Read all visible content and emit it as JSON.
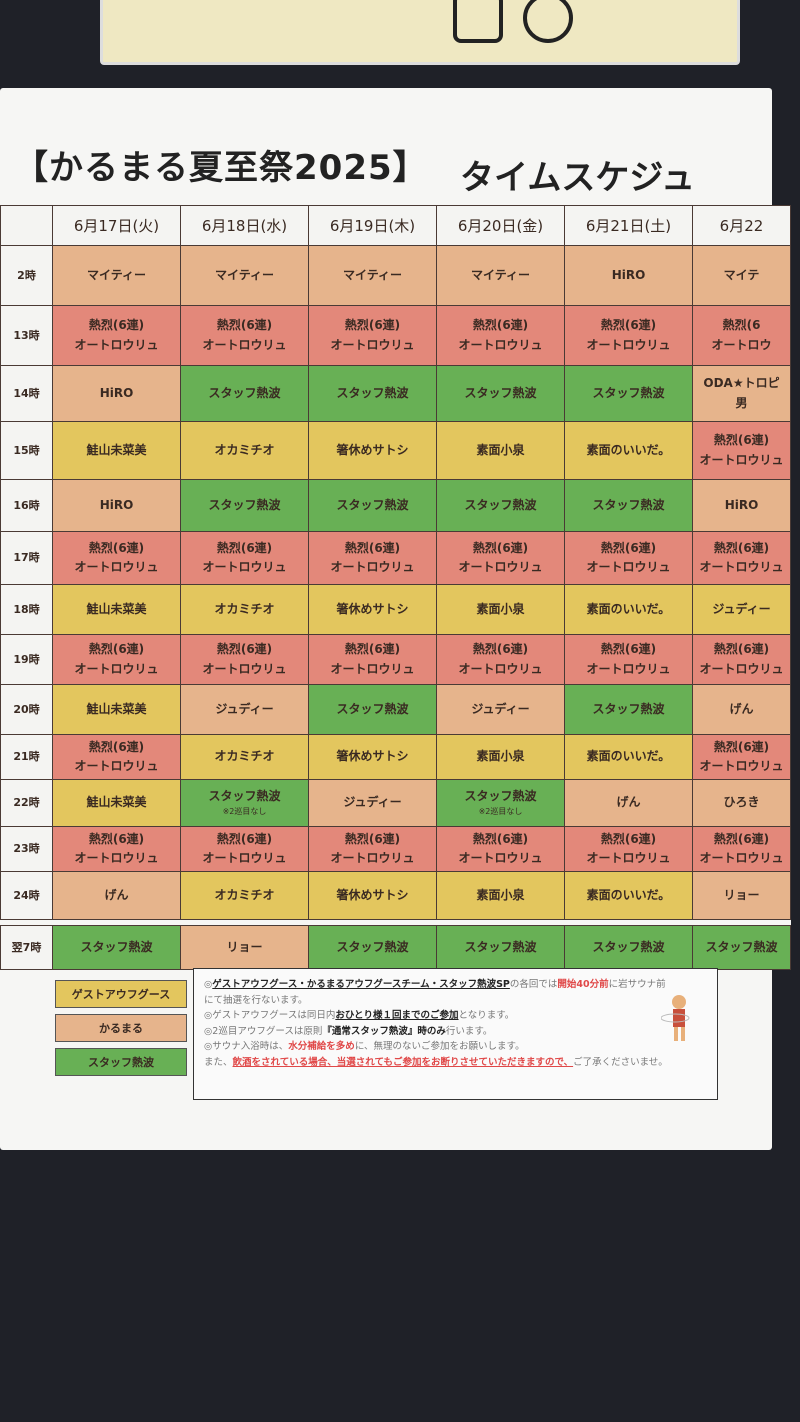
{
  "title": "【かるまる夏至祭2025】",
  "subtitle": "タイムスケジュ",
  "days": [
    "6月17日(火)",
    "6月18日(水)",
    "6月19日(木)",
    "6月20日(金)",
    "6月21日(土)",
    "6月22"
  ],
  "colors": {
    "G": "#e3c65e",
    "K": "#e6b48c",
    "R": "#e3887a",
    "S": "#68b055"
  },
  "rows": [
    {
      "time": "2時",
      "cells": [
        [
          "K",
          "マイティー"
        ],
        [
          "K",
          "マイティー"
        ],
        [
          "K",
          "マイティー"
        ],
        [
          "K",
          "マイティー"
        ],
        [
          "K",
          "HiRO"
        ],
        [
          "K",
          "マイテ"
        ]
      ]
    },
    {
      "time": "13時",
      "cells": [
        [
          "R",
          "熱烈(6連)",
          "オートロウリュ"
        ],
        [
          "R",
          "熱烈(6連)",
          "オートロウリュ"
        ],
        [
          "R",
          "熱烈(6連)",
          "オートロウリュ"
        ],
        [
          "R",
          "熱烈(6連)",
          "オートロウリュ"
        ],
        [
          "R",
          "熱烈(6連)",
          "オートロウリュ"
        ],
        [
          "R",
          "熱烈(6",
          "オートロウ"
        ]
      ]
    },
    {
      "time": "14時",
      "cells": [
        [
          "K",
          "HiRO"
        ],
        [
          "S",
          "スタッフ熱波"
        ],
        [
          "S",
          "スタッフ熱波"
        ],
        [
          "S",
          "スタッフ熱波"
        ],
        [
          "S",
          "スタッフ熱波"
        ],
        [
          "K",
          "ODA★トロピ",
          "男"
        ]
      ]
    },
    {
      "time": "15時",
      "cells": [
        [
          "G",
          "鮭山未菜美"
        ],
        [
          "G",
          "オカミチオ"
        ],
        [
          "G",
          "箸休めサトシ"
        ],
        [
          "G",
          "素面小泉"
        ],
        [
          "G",
          "素面のいいだ。"
        ],
        [
          "R",
          "熱烈(6連)",
          "オートロウリュ"
        ]
      ]
    },
    {
      "time": "16時",
      "cells": [
        [
          "K",
          "HiRO"
        ],
        [
          "S",
          "スタッフ熱波"
        ],
        [
          "S",
          "スタッフ熱波"
        ],
        [
          "S",
          "スタッフ熱波"
        ],
        [
          "S",
          "スタッフ熱波"
        ],
        [
          "K",
          "HiRO"
        ]
      ]
    },
    {
      "time": "17時",
      "cells": [
        [
          "R",
          "熱烈(6連)",
          "オートロウリュ"
        ],
        [
          "R",
          "熱烈(6連)",
          "オートロウリュ"
        ],
        [
          "R",
          "熱烈(6連)",
          "オートロウリュ"
        ],
        [
          "R",
          "熱烈(6連)",
          "オートロウリュ"
        ],
        [
          "R",
          "熱烈(6連)",
          "オートロウリュ"
        ],
        [
          "R",
          "熱烈(6連)",
          "オートロウリュ"
        ]
      ]
    },
    {
      "time": "18時",
      "cells": [
        [
          "G",
          "鮭山未菜美"
        ],
        [
          "G",
          "オカミチオ"
        ],
        [
          "G",
          "箸休めサトシ"
        ],
        [
          "G",
          "素面小泉"
        ],
        [
          "G",
          "素面のいいだ。"
        ],
        [
          "G",
          "ジュディー"
        ]
      ]
    },
    {
      "time": "19時",
      "cells": [
        [
          "R",
          "熱烈(6連)",
          "オートロウリュ"
        ],
        [
          "R",
          "熱烈(6連)",
          "オートロウリュ"
        ],
        [
          "R",
          "熱烈(6連)",
          "オートロウリュ"
        ],
        [
          "R",
          "熱烈(6連)",
          "オートロウリュ"
        ],
        [
          "R",
          "熱烈(6連)",
          "オートロウリュ"
        ],
        [
          "R",
          "熱烈(6連)",
          "オートロウリュ"
        ]
      ]
    },
    {
      "time": "20時",
      "cells": [
        [
          "G",
          "鮭山未菜美"
        ],
        [
          "K",
          "ジュディー"
        ],
        [
          "S",
          "スタッフ熱波"
        ],
        [
          "K",
          "ジュディー"
        ],
        [
          "S",
          "スタッフ熱波"
        ],
        [
          "K",
          "げん"
        ]
      ]
    },
    {
      "time": "21時",
      "cells": [
        [
          "R",
          "熱烈(6連)",
          "オートロウリュ"
        ],
        [
          "G",
          "オカミチオ"
        ],
        [
          "G",
          "箸休めサトシ"
        ],
        [
          "G",
          "素面小泉"
        ],
        [
          "G",
          "素面のいいだ。"
        ],
        [
          "R",
          "熱烈(6連)",
          "オートロウリュ"
        ]
      ]
    },
    {
      "time": "22時",
      "cells": [
        [
          "G",
          "鮭山未菜美"
        ],
        [
          "S",
          "スタッフ熱波",
          "※2巡目なし"
        ],
        [
          "K",
          "ジュディー"
        ],
        [
          "S",
          "スタッフ熱波",
          "※2巡目なし"
        ],
        [
          "K",
          "げん"
        ],
        [
          "K",
          "ひろき"
        ]
      ]
    },
    {
      "time": "23時",
      "cells": [
        [
          "R",
          "熱烈(6連)",
          "オートロウリュ"
        ],
        [
          "R",
          "熱烈(6連)",
          "オートロウリュ"
        ],
        [
          "R",
          "熱烈(6連)",
          "オートロウリュ"
        ],
        [
          "R",
          "熱烈(6連)",
          "オートロウリュ"
        ],
        [
          "R",
          "熱烈(6連)",
          "オートロウリュ"
        ],
        [
          "R",
          "熱烈(6連)",
          "オートロウリュ"
        ]
      ]
    },
    {
      "time": "24時",
      "cells": [
        [
          "K",
          "げん"
        ],
        [
          "G",
          "オカミチオ"
        ],
        [
          "G",
          "箸休めサトシ"
        ],
        [
          "G",
          "素面小泉"
        ],
        [
          "G",
          "素面のいいだ。"
        ],
        [
          "K",
          "リョー"
        ]
      ]
    }
  ],
  "morning": {
    "time": "翌7時",
    "cells": [
      [
        "S",
        "スタッフ熱波"
      ],
      [
        "K",
        "リョー"
      ],
      [
        "S",
        "スタッフ熱波"
      ],
      [
        "S",
        "スタッフ熱波"
      ],
      [
        "S",
        "スタッフ熱波"
      ],
      [
        "S",
        "スタッフ熱波"
      ]
    ]
  },
  "legend": [
    {
      "key": "G",
      "label": "ゲストアウフグース"
    },
    {
      "key": "K",
      "label": "かるまる"
    },
    {
      "key": "S",
      "label": "スタッフ熱波"
    }
  ],
  "notes": {
    "l1a": "◎",
    "l1b": "ゲストアウフグース・かるまるアウフグースチーム・スタッフ熱波SP",
    "l1c": "の各回では",
    "l1d": "開始40分前",
    "l1e": "に岩サウナ前",
    "l2": "にて抽選を行ないます。",
    "l3a": "◎ゲストアウフグースは同日内",
    "l3b": "おひとり様１回までのご参加",
    "l3c": "となります。",
    "l4a": "◎2巡目アウフグースは原則",
    "l4b": "『通常スタッフ熱波』時のみ",
    "l4c": "行います。",
    "l5a": "◎サウナ入浴時は、",
    "l5b": "水分補給を多め",
    "l5c": "に、無理のないご参加をお願いします。",
    "l6a": "また、",
    "l6b": "飲酒をされている場合、当選されてもご参加をお断りさせていただきますので、",
    "l6c": "ご了承くださいませ。"
  }
}
